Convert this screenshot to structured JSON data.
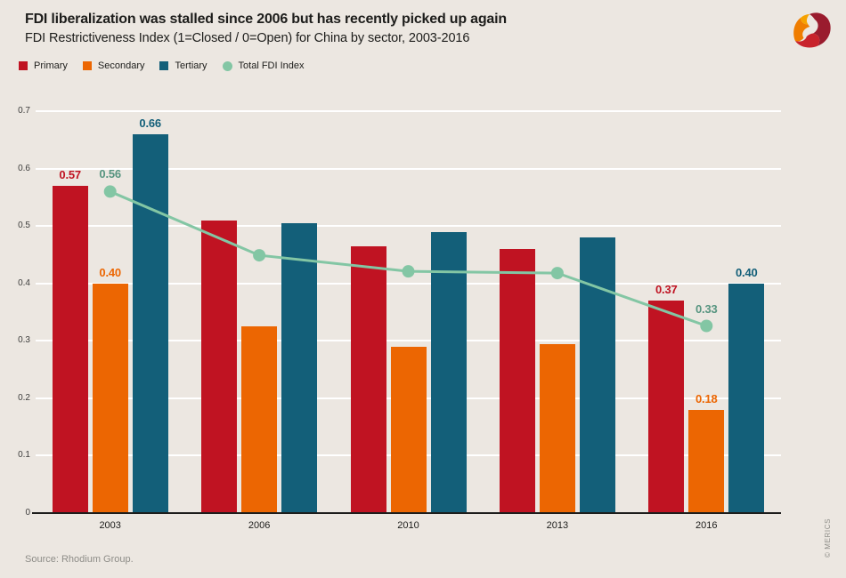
{
  "header": {
    "title": "FDI liberalization was stalled since 2006 but has recently picked up again",
    "subtitle": "FDI Restrictiveness Index (1=Closed / 0=Open) for China by sector, 2003-2016"
  },
  "icons": {
    "logo": "merics-logo"
  },
  "legend": [
    {
      "label": "Primary",
      "color": "#c01322",
      "shape": "square"
    },
    {
      "label": "Secondary",
      "color": "#ec6602",
      "shape": "square"
    },
    {
      "label": "Tertiary",
      "color": "#135f79",
      "shape": "square"
    },
    {
      "label": "Total FDI Index",
      "color": "#83c6a4",
      "shape": "circle"
    }
  ],
  "chart_data": {
    "type": "bar",
    "categories": [
      "2003",
      "2006",
      "2010",
      "2013",
      "2016"
    ],
    "series": [
      {
        "name": "Primary",
        "type": "bar",
        "color": "#c01322",
        "values": [
          0.57,
          0.51,
          0.465,
          0.46,
          0.37
        ],
        "labels": [
          "0.57",
          "",
          "",
          "",
          "0.37"
        ]
      },
      {
        "name": "Secondary",
        "type": "bar",
        "color": "#ec6602",
        "values": [
          0.4,
          0.325,
          0.29,
          0.295,
          0.18
        ],
        "labels": [
          "0.40",
          "",
          "",
          "",
          "0.18"
        ]
      },
      {
        "name": "Tertiary",
        "type": "bar",
        "color": "#135f79",
        "values": [
          0.66,
          0.505,
          0.49,
          0.48,
          0.4
        ],
        "labels": [
          "0.66",
          "",
          "",
          "",
          "0.40"
        ]
      },
      {
        "name": "Total FDI Index",
        "type": "line",
        "color": "#83c6a4",
        "label_color": "#579580",
        "values": [
          0.56,
          0.449,
          0.421,
          0.418,
          0.326
        ],
        "labels": [
          "0.56",
          "",
          "",
          "",
          "0.33"
        ]
      }
    ],
    "title": "FDI liberalization was stalled since 2006 but has recently picked up again",
    "subtitle": "FDI Restrictiveness Index (1=Closed / 0=Open) for China by sector, 2003-2016",
    "xlabel": "",
    "ylabel": "",
    "ylim": [
      0,
      0.7
    ],
    "yticks": [
      "0",
      "0.1",
      "0.2",
      "0.3",
      "0.4",
      "0.5",
      "0.6",
      "0.7"
    ],
    "grid": "horizontal",
    "grid_color": "#ffffff",
    "legend_position": "top-left"
  },
  "footer": {
    "source": "Source: Rhodium Group.",
    "credit": "© MERICS"
  },
  "colors": {
    "background": "#ece7e1",
    "axis": "#1d1d1b",
    "tick_text": "#3d3d3c"
  }
}
